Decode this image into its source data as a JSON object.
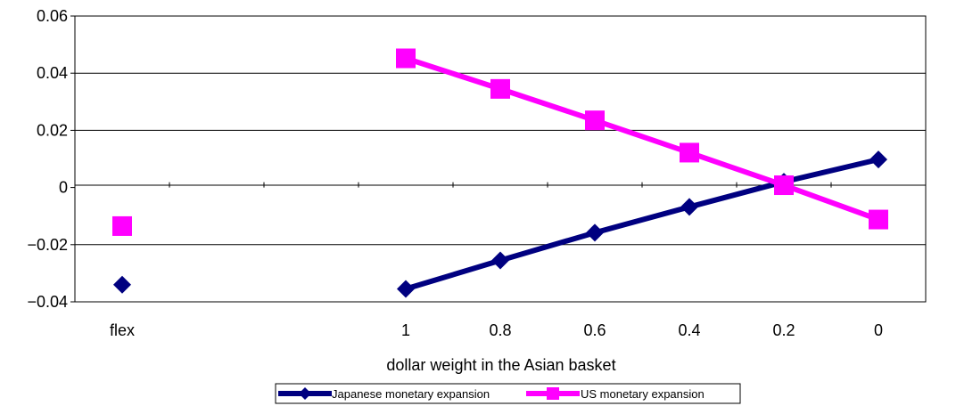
{
  "chart_data": {
    "type": "line",
    "categories": [
      "flex",
      "",
      "",
      "1",
      "0.8",
      "0.6",
      "0.4",
      "0.2",
      "0"
    ],
    "xlabel": "dollar weight in the Asian basket",
    "ylabel": "",
    "ylim": [
      -0.04,
      0.06
    ],
    "yticks": [
      "0.06",
      "0.04",
      "0.02",
      "0",
      "-0.02",
      "-0.04"
    ],
    "grid": "horizontal",
    "legend_position": "bottom",
    "series": [
      {
        "name": "Japanese monetary expansion",
        "color": "#000080",
        "marker": "diamond",
        "values": [
          -0.034,
          null,
          null,
          -0.0355,
          -0.0255,
          -0.0158,
          -0.0068,
          0.002,
          0.0098
        ]
      },
      {
        "name": "US monetary expansion",
        "color": "#FF00FF",
        "marker": "square",
        "values": [
          -0.0135,
          null,
          null,
          0.0452,
          0.0345,
          0.0235,
          0.0122,
          0.0008,
          -0.0112
        ]
      }
    ]
  }
}
